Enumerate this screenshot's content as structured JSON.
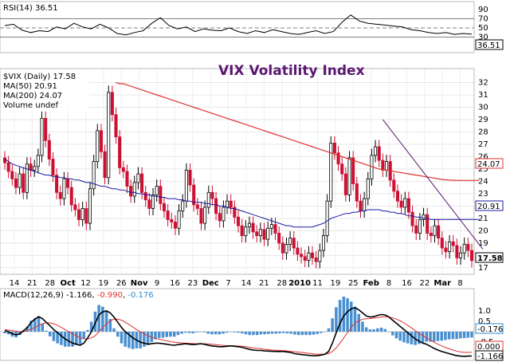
{
  "chart_data": [
    {
      "type": "line",
      "panel": "rsi",
      "legend": "RSI(14) 36.51",
      "y_ticks": [
        90,
        70,
        50,
        30,
        10
      ],
      "ylim": [
        0,
        100
      ],
      "reference_lines": [
        70,
        50,
        30
      ],
      "current_value": "36.51",
      "series": [
        {
          "values": [
            55,
            58,
            45,
            40,
            44,
            42,
            52,
            48,
            60,
            52,
            48,
            58,
            50,
            38,
            35,
            40,
            44,
            60,
            72,
            55,
            48,
            52,
            42,
            48,
            45,
            44,
            50,
            42,
            38,
            44,
            40,
            46,
            42,
            38,
            36,
            40,
            44,
            38,
            42,
            62,
            78,
            65,
            60,
            58,
            56,
            54,
            52,
            46,
            44,
            40,
            38,
            40,
            36,
            38,
            36.51
          ]
        }
      ]
    },
    {
      "type": "candlestick",
      "panel": "price",
      "title": "VIX  Volatility Index",
      "legend": [
        "$VIX (Daily) 17.58",
        "MA(50) 20.91",
        "MA(200) 24.07",
        "Volume undef"
      ],
      "y_ticks": [
        32,
        31,
        30,
        29,
        28,
        27,
        26,
        25,
        24,
        23,
        22,
        21,
        20,
        19,
        18,
        17
      ],
      "ylim": [
        16.6,
        33
      ],
      "x_ticks": [
        "14",
        "21",
        "28",
        "Oct",
        "12",
        "19",
        "26",
        "Nov",
        "9",
        "16",
        "23",
        "Dec",
        "7",
        "14",
        "21",
        "28",
        "2010",
        "11",
        "19",
        "25",
        "Feb",
        "8",
        "16",
        "22",
        "Mar",
        "8"
      ],
      "price_tag": "17.58",
      "ma50_tag": "20.91",
      "ma200_tag": "24.07",
      "colors": {
        "up": "#000000",
        "down": "#cc1133",
        "ma50": "#1a1aa0",
        "ma200": "#e03030",
        "trend": "#5a1670"
      },
      "closes": [
        25.5,
        24.8,
        24.2,
        23.5,
        24.6,
        23.1,
        25.4,
        24.9,
        25.2,
        26.1,
        29.1,
        27.3,
        25.8,
        24.5,
        23.1,
        22.6,
        24.2,
        23.5,
        22.1,
        21.7,
        20.9,
        21.8,
        20.6,
        23.4,
        25.6,
        28.1,
        26.4,
        24.3,
        31.2,
        29.4,
        27.6,
        25.1,
        24.8,
        23.6,
        22.8,
        23.9,
        24.6,
        23.1,
        22.5,
        21.8,
        22.9,
        23.6,
        22.2,
        21.6,
        20.9,
        20.7,
        20.2,
        21.6,
        22.4,
        24.9,
        23.7,
        22.1,
        21.8,
        20.6,
        21.9,
        23.1,
        22.6,
        21.4,
        20.8,
        21.9,
        22.4,
        21.9,
        21.1,
        20.4,
        19.6,
        20.3,
        20.6,
        19.9,
        19.6,
        20.1,
        19.3,
        20.2,
        20.5,
        19.8,
        19.0,
        18.2,
        18.9,
        19.4,
        18.6,
        18.1,
        17.9,
        17.6,
        18.2,
        17.8,
        17.5,
        18.4,
        19.6,
        22.4,
        27.1,
        26.3,
        25.4,
        24.6,
        22.9,
        25.9,
        23.8,
        22.4,
        21.6,
        22.6,
        24.2,
        26.1,
        26.8,
        25.7,
        24.9,
        25.6,
        24.1,
        23.2,
        22.4,
        21.9,
        22.6,
        21.5,
        20.4,
        19.8,
        20.9,
        21.3,
        19.8,
        19.6,
        20.4,
        19.4,
        18.6,
        18.3,
        19.1,
        18.8,
        17.8,
        18.2,
        18.9,
        18.4,
        17.58
      ],
      "ma50": [
        25.8,
        25.6,
        25.4,
        25.3,
        25.2,
        25.1,
        25.0,
        24.9,
        24.8,
        24.7,
        24.6,
        24.5,
        24.5,
        24.4,
        24.4,
        24.3,
        24.3,
        24.2,
        24.2,
        24.1,
        24.1,
        24.0,
        23.9,
        23.9,
        23.8,
        23.7,
        23.6,
        23.6,
        23.5,
        23.4,
        23.4,
        23.3,
        23.3,
        23.2,
        23.1,
        23.1,
        23.0,
        23.0,
        22.9,
        22.9,
        22.8,
        22.8,
        22.7,
        22.7,
        22.6,
        22.6,
        22.6,
        22.5,
        22.5,
        22.4,
        22.4,
        22.3,
        22.3,
        22.3,
        22.2,
        22.2,
        22.1,
        22.1,
        22.0,
        22.0,
        21.9,
        21.8,
        21.8,
        21.7,
        21.6,
        21.5,
        21.4,
        21.3,
        21.2,
        21.1,
        21.0,
        20.9,
        20.8,
        20.7,
        20.6,
        20.5,
        20.4,
        20.4,
        20.3,
        20.3,
        20.3,
        20.3,
        20.3,
        20.3,
        20.4,
        20.5,
        20.6,
        20.8,
        21.0,
        21.1,
        21.2,
        21.3,
        21.4,
        21.4,
        21.5,
        21.5,
        21.6,
        21.6,
        21.7,
        21.7,
        21.7,
        21.7,
        21.6,
        21.6,
        21.5,
        21.5,
        21.4,
        21.4,
        21.3,
        21.2,
        21.2,
        21.1,
        21.1,
        21.0,
        21.0,
        20.9,
        20.9,
        20.9,
        20.91,
        20.91,
        20.91,
        20.91,
        20.91,
        20.91,
        20.91,
        20.91,
        20.91,
        20.91,
        20.91
      ],
      "ma200": [
        null,
        null,
        null,
        null,
        null,
        null,
        null,
        null,
        null,
        null,
        null,
        null,
        null,
        null,
        null,
        null,
        null,
        null,
        null,
        null,
        null,
        null,
        null,
        null,
        null,
        null,
        null,
        null,
        null,
        null,
        32.0,
        31.9,
        31.9,
        31.8,
        31.7,
        31.6,
        31.5,
        31.4,
        31.3,
        31.2,
        31.1,
        31.0,
        30.9,
        30.8,
        30.7,
        30.6,
        30.5,
        30.4,
        30.3,
        30.2,
        30.1,
        30.0,
        29.9,
        29.8,
        29.7,
        29.6,
        29.5,
        29.4,
        29.3,
        29.2,
        29.1,
        29.0,
        28.9,
        28.8,
        28.7,
        28.6,
        28.5,
        28.4,
        28.3,
        28.2,
        28.1,
        28.0,
        27.9,
        27.8,
        27.7,
        27.6,
        27.5,
        27.4,
        27.3,
        27.2,
        27.1,
        27.0,
        26.9,
        26.8,
        26.7,
        26.6,
        26.5,
        26.4,
        26.3,
        26.2,
        26.1,
        26.0,
        25.9,
        25.8,
        25.7,
        25.6,
        25.5,
        25.4,
        25.3,
        25.2,
        25.1,
        25.0,
        24.95,
        24.9,
        24.85,
        24.8,
        24.75,
        24.7,
        24.65,
        24.6,
        24.55,
        24.5,
        24.45,
        24.4,
        24.35,
        24.3,
        24.25,
        24.2,
        24.15,
        24.12,
        24.1,
        24.09,
        24.08,
        24.07,
        24.07,
        24.07,
        24.07,
        24.07,
        24.07
      ],
      "trendline": [
        [
          102,
          29.0
        ],
        [
          129,
          18.5
        ]
      ]
    },
    {
      "type": "histogram",
      "panel": "macd",
      "legend": {
        "prefix": "MACD(12,26,9)",
        "macd": "-1.166",
        "signal": "-0.990",
        "hist": "-0.176"
      },
      "y_ticks": [
        1.0,
        0.5,
        -0.5
      ],
      "ylim": [
        -1.3,
        1.45
      ],
      "tags": [
        "-0.176",
        "0.000",
        "-1.166"
      ],
      "macd": [
        0.05,
        0.0,
        -0.1,
        -0.15,
        -0.1,
        0.05,
        0.2,
        0.45,
        0.6,
        0.72,
        0.62,
        0.45,
        0.28,
        0.1,
        -0.05,
        -0.2,
        -0.35,
        -0.45,
        -0.55,
        -0.6,
        -0.65,
        -0.55,
        -0.3,
        0.0,
        0.4,
        0.8,
        0.95,
        1.0,
        0.9,
        0.7,
        0.45,
        0.2,
        0.0,
        -0.15,
        -0.3,
        -0.4,
        -0.5,
        -0.55,
        -0.6,
        -0.58,
        -0.55,
        -0.55,
        -0.58,
        -0.6,
        -0.63,
        -0.65,
        -0.62,
        -0.6,
        -0.58,
        -0.6,
        -0.62,
        -0.6,
        -0.58,
        -0.6,
        -0.65,
        -0.68,
        -0.7,
        -0.72,
        -0.72,
        -0.7,
        -0.68,
        -0.7,
        -0.72,
        -0.75,
        -0.8,
        -0.85,
        -0.88,
        -0.9,
        -0.9,
        -0.92,
        -0.93,
        -0.94,
        -0.95,
        -0.95,
        -0.95,
        -0.97,
        -1.0,
        -1.05,
        -1.08,
        -1.1,
        -1.12,
        -1.14,
        -1.15,
        -1.15,
        -1.12,
        -1.08,
        -0.95,
        -0.55,
        -0.05,
        0.4,
        0.75,
        0.95,
        1.1,
        1.15,
        1.05,
        0.9,
        0.75,
        0.7,
        0.72,
        0.78,
        0.82,
        0.8,
        0.7,
        0.55,
        0.4,
        0.25,
        0.1,
        -0.05,
        -0.2,
        -0.35,
        -0.45,
        -0.55,
        -0.6,
        -0.7,
        -0.8,
        -0.88,
        -0.95,
        -1.0,
        -1.05,
        -1.1,
        -1.15,
        -1.17,
        -1.18,
        -1.17,
        -1.166
      ],
      "signal": [
        0.1,
        0.08,
        0.05,
        0.02,
        0.0,
        0.0,
        0.05,
        0.12,
        0.2,
        0.3,
        0.38,
        0.42,
        0.42,
        0.38,
        0.3,
        0.2,
        0.1,
        0.0,
        -0.1,
        -0.2,
        -0.28,
        -0.34,
        -0.35,
        -0.3,
        -0.2,
        0.0,
        0.2,
        0.38,
        0.52,
        0.6,
        0.6,
        0.55,
        0.45,
        0.34,
        0.22,
        0.1,
        0.0,
        -0.1,
        -0.2,
        -0.27,
        -0.32,
        -0.36,
        -0.4,
        -0.44,
        -0.48,
        -0.5,
        -0.52,
        -0.54,
        -0.55,
        -0.56,
        -0.57,
        -0.58,
        -0.58,
        -0.58,
        -0.59,
        -0.6,
        -0.62,
        -0.64,
        -0.66,
        -0.67,
        -0.67,
        -0.68,
        -0.69,
        -0.7,
        -0.72,
        -0.75,
        -0.78,
        -0.8,
        -0.82,
        -0.84,
        -0.86,
        -0.88,
        -0.89,
        -0.9,
        -0.91,
        -0.92,
        -0.94,
        -0.96,
        -0.98,
        -1.0,
        -1.02,
        -1.04,
        -1.06,
        -1.08,
        -1.08,
        -1.08,
        -1.05,
        -0.95,
        -0.78,
        -0.55,
        -0.3,
        -0.05,
        0.2,
        0.4,
        0.52,
        0.6,
        0.62,
        0.63,
        0.65,
        0.68,
        0.7,
        0.72,
        0.7,
        0.66,
        0.6,
        0.52,
        0.42,
        0.3,
        0.18,
        0.05,
        -0.08,
        -0.2,
        -0.3,
        -0.4,
        -0.5,
        -0.6,
        -0.68,
        -0.75,
        -0.82,
        -0.88,
        -0.93,
        -0.97,
        -0.99,
        -0.99,
        -0.99
      ]
    }
  ]
}
